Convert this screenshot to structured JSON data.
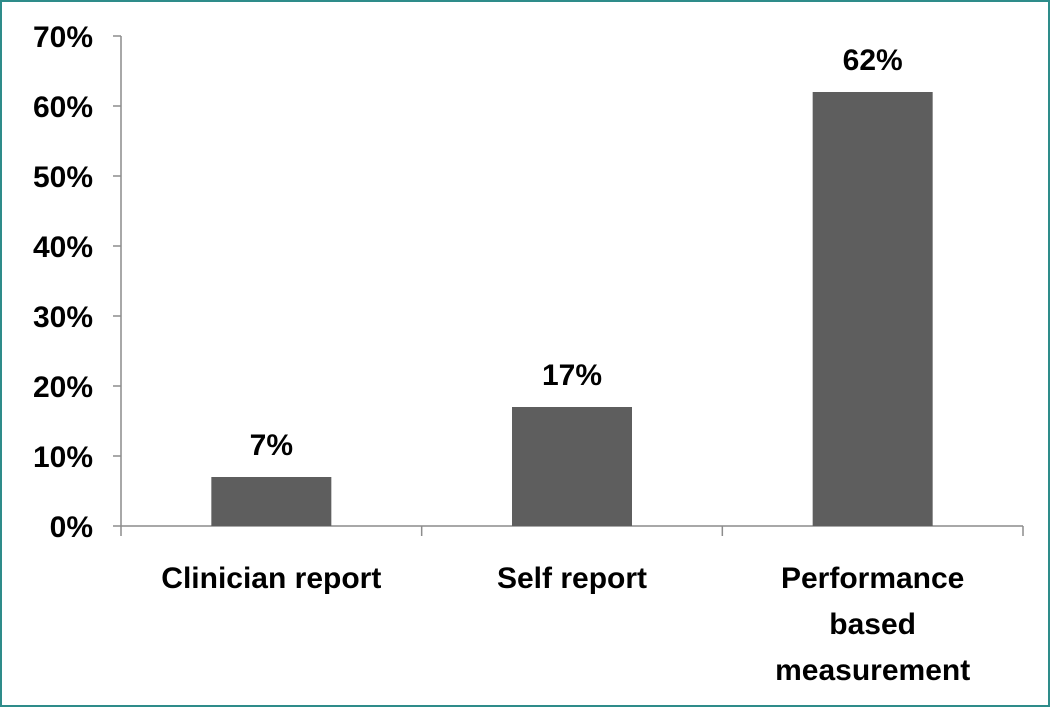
{
  "chart_data": {
    "type": "bar",
    "categories": [
      [
        "Clinician report"
      ],
      [
        "Self report"
      ],
      [
        "Performance",
        "based",
        "measurement"
      ]
    ],
    "values": [
      7,
      17,
      62
    ],
    "data_labels": [
      "7%",
      "17%",
      "62%"
    ],
    "y_ticks": [
      "0%",
      "10%",
      "20%",
      "30%",
      "40%",
      "50%",
      "60%",
      "70%"
    ],
    "ylim": [
      0,
      70
    ],
    "grid": false,
    "legend": "none",
    "bar_color": "#5e5e5e",
    "axis_color": "#8c8c8c",
    "frame_color": "#2e8c8a"
  }
}
